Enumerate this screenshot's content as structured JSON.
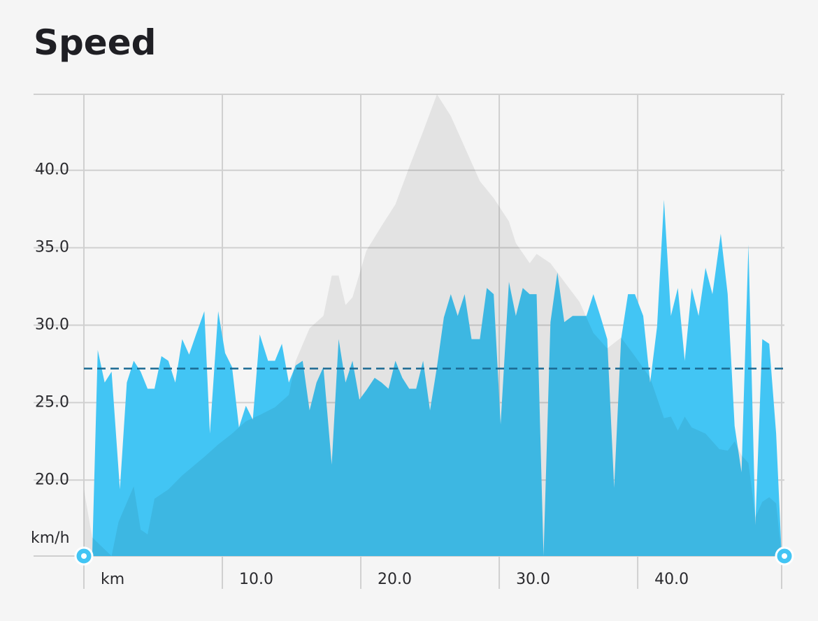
{
  "chart_data": {
    "type": "area",
    "title": "Speed",
    "y_label": "km/h",
    "xlim": [
      0,
      50.6
    ],
    "ylim": [
      15.1,
      44.9
    ],
    "xticks": [
      {
        "value": 0,
        "label": "km"
      },
      {
        "value": 10,
        "label": "10.0"
      },
      {
        "value": 20,
        "label": "20.0"
      },
      {
        "value": 30,
        "label": "30.0"
      },
      {
        "value": 40,
        "label": "40.0"
      }
    ],
    "yticks": [
      {
        "value": 20,
        "label": "20.0"
      },
      {
        "value": 25,
        "label": "25.0"
      },
      {
        "value": 30,
        "label": "30.0"
      },
      {
        "value": 35,
        "label": "35.0"
      },
      {
        "value": 40,
        "label": "40.0"
      }
    ],
    "grid": true,
    "average": 27.2,
    "average_color": "#1b6a92",
    "series": [
      {
        "color": "#42c5f4",
        "x": [
          0,
          0.6,
          1.0,
          1.5,
          2.0,
          2.6,
          3.1,
          3.6,
          4.1,
          4.6,
          5.1,
          5.6,
          6.1,
          6.6,
          7.1,
          7.6,
          8.1,
          8.7,
          9.1,
          9.7,
          10.2,
          10.7,
          11.2,
          11.7,
          12.2,
          12.7,
          13.3,
          13.8,
          14.3,
          14.8,
          15.3,
          15.8,
          16.3,
          16.8,
          17.3,
          17.9,
          18.4,
          18.9,
          19.4,
          19.9,
          20.4,
          21.0,
          21.5,
          22.0,
          22.5,
          23.0,
          23.5,
          24.0,
          24.5,
          25.0,
          25.5,
          26.0,
          26.5,
          27.0,
          27.5,
          28.0,
          28.6,
          29.1,
          29.6,
          30.1,
          30.7,
          31.2,
          31.7,
          32.2,
          32.7,
          33.2,
          33.7,
          34.2,
          34.7,
          35.3,
          35.8,
          36.3,
          36.8,
          37.3,
          37.8,
          38.3,
          38.8,
          39.3,
          39.8,
          40.4,
          40.9,
          41.4,
          41.9,
          42.4,
          42.9,
          43.4,
          43.9,
          44.4,
          44.9,
          45.4,
          46.0,
          46.5,
          47.0,
          47.5,
          48.0,
          48.5,
          49.0,
          49.5,
          50.0,
          50.4
        ],
        "values": [
          15.1,
          15.1,
          28.4,
          26.3,
          27.0,
          19.4,
          26.3,
          27.7,
          27.0,
          25.9,
          25.9,
          28.0,
          27.7,
          26.3,
          29.1,
          28.1,
          29.4,
          30.9,
          23.0,
          30.9,
          28.2,
          27.3,
          23.4,
          24.8,
          23.9,
          29.4,
          27.7,
          27.7,
          28.8,
          26.3,
          27.4,
          27.7,
          24.5,
          26.3,
          27.3,
          21.0,
          29.1,
          26.3,
          27.7,
          25.2,
          25.8,
          26.6,
          26.3,
          25.9,
          27.7,
          26.6,
          25.9,
          25.9,
          27.7,
          24.5,
          27.3,
          30.5,
          32.0,
          30.6,
          32.0,
          29.1,
          29.1,
          32.4,
          32.0,
          23.6,
          32.8,
          30.6,
          32.4,
          32.0,
          32.0,
          15.1,
          30.2,
          33.4,
          30.2,
          30.6,
          30.6,
          30.6,
          32.0,
          30.6,
          29.1,
          19.5,
          29.1,
          32.0,
          32.0,
          30.6,
          26.3,
          29.9,
          38.1,
          30.6,
          32.4,
          27.7,
          32.4,
          30.6,
          33.7,
          32.0,
          35.9,
          32.0,
          23.5,
          20.5,
          35.2,
          17.1,
          29.1,
          28.8,
          23.0,
          15.1
        ]
      },
      {
        "color": "rgba(0,0,0,0.07)",
        "x": [
          0,
          0.6,
          2.0,
          2.5,
          3.6,
          4.1,
          4.6,
          5.1,
          6.1,
          7.1,
          8.7,
          9.7,
          10.7,
          11.7,
          12.7,
          13.8,
          14.8,
          15.3,
          16.3,
          17.3,
          17.9,
          18.4,
          18.9,
          19.4,
          20.4,
          21.5,
          22.5,
          23.5,
          24.5,
          25.5,
          26.5,
          27.5,
          28.6,
          29.6,
          30.7,
          31.2,
          32.2,
          32.7,
          33.7,
          34.7,
          35.8,
          36.8,
          37.8,
          38.8,
          39.8,
          40.9,
          41.9,
          42.4,
          42.9,
          43.4,
          43.9,
          44.9,
          45.9,
          46.5,
          47.0,
          47.5,
          48.0,
          48.5,
          49.0,
          49.5,
          50.0,
          50.4
        ],
        "values": [
          19.4,
          16.3,
          15.1,
          17.3,
          19.6,
          16.8,
          16.5,
          18.8,
          19.4,
          20.3,
          21.5,
          22.3,
          23.0,
          23.8,
          24.2,
          24.7,
          25.5,
          27.7,
          29.8,
          30.6,
          33.2,
          33.2,
          31.3,
          31.8,
          34.8,
          36.4,
          37.8,
          40.2,
          42.5,
          44.9,
          43.5,
          41.5,
          39.3,
          38.2,
          36.7,
          35.3,
          34.0,
          34.6,
          34.0,
          32.8,
          31.5,
          29.5,
          28.5,
          29.2,
          28.0,
          26.6,
          24.0,
          24.1,
          23.2,
          24.1,
          23.4,
          23.0,
          22.0,
          21.9,
          22.5,
          21.6,
          21.1,
          17.6,
          18.6,
          18.9,
          18.5,
          15.1
        ]
      }
    ]
  }
}
